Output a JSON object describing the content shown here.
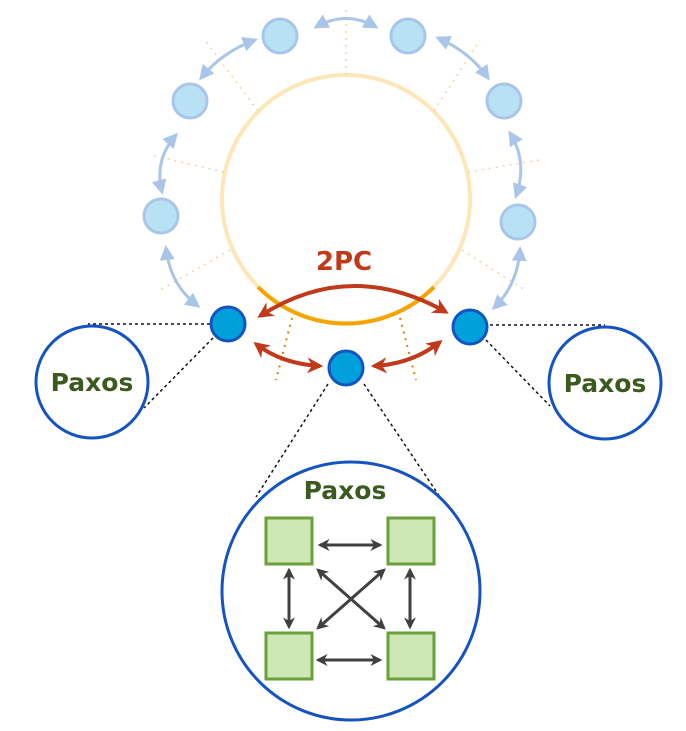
{
  "labels": {
    "twopc": "2PC",
    "paxos_left": "Paxos",
    "paxos_right": "Paxos",
    "paxos_bottom": "Paxos"
  },
  "colors": {
    "ring_faded": "#fde6b8",
    "ring_active": "#f5a300",
    "node_faded_fill": "#b8e2f4",
    "node_faded_stroke": "#a9c6ea",
    "node_active_fill": "#00a0db",
    "node_active_stroke": "#1554c0",
    "twopc_arrow": "#c0391b",
    "paxos_circle": "#1554c0",
    "paxos_text": "#3a5a1e",
    "replica_fill": "#cde8b5",
    "replica_stroke": "#6a9f3a",
    "replica_arrow": "#404040"
  },
  "icons": {
    "faded_node": "circle",
    "active_node": "circle",
    "replica": "square",
    "bidirectional_arrow": "double-headed-arrow"
  }
}
